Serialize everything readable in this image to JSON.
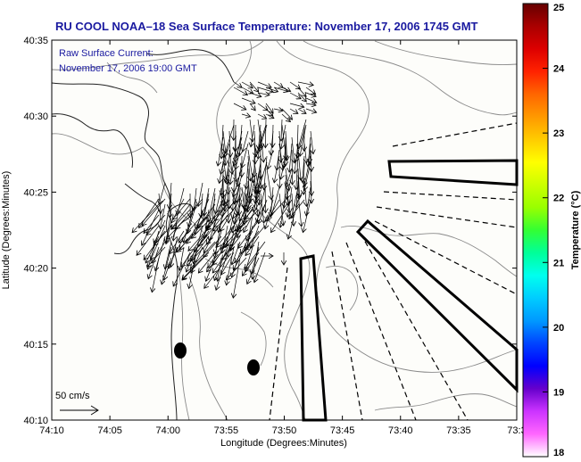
{
  "title": "RU COOL  NOAA–18  Sea Surface Temperature:  November 17, 2006 1745 GMT",
  "current_note": {
    "line1": "Raw Surface Current:",
    "line2": "November 17, 2006 19:00 GMT"
  },
  "scale_label": "50 cm/s",
  "axes": {
    "xlabel": "Longitude (Degrees:Minutes)",
    "ylabel": "Latitude (Degrees:Minutes)",
    "x_ticks": [
      "74:10",
      "74:05",
      "74:00",
      "73:55",
      "73:50",
      "73:45",
      "73:40",
      "73:35",
      "73:3"
    ],
    "y_ticks": [
      "40:35",
      "40:30",
      "40:25",
      "40:20",
      "40:15",
      "40:10"
    ]
  },
  "colorbar": {
    "label": "Temperature (°C)",
    "ticks": [
      "25",
      "24",
      "23",
      "22",
      "21",
      "20",
      "19",
      "18"
    ],
    "range": [
      18,
      25
    ],
    "colors": [
      "#ffffff",
      "#ff66ff",
      "#cc33ff",
      "#6600cc",
      "#0000ff",
      "#0044ff",
      "#0099ff",
      "#00ccff",
      "#00ffee",
      "#00ff99",
      "#33ff33",
      "#99ff00",
      "#ccff00",
      "#ffff00",
      "#ffcc00",
      "#ff9900",
      "#ff6600",
      "#ff2200",
      "#dd0000",
      "#aa0000",
      "#660000"
    ]
  },
  "map_colors": {
    "background": "#fdfdfa",
    "contour": "#8a8a8a",
    "coast": "#222222",
    "frame": "#000000"
  }
}
